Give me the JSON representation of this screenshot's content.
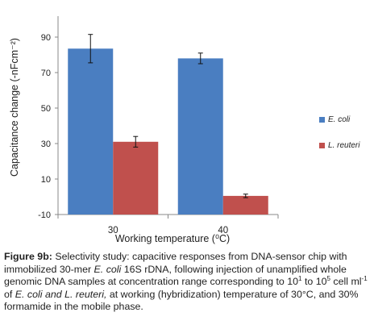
{
  "chart_data": {
    "type": "bar",
    "categories": [
      "30",
      "40"
    ],
    "series": [
      {
        "name": "E. coli",
        "values": [
          83.5,
          78.0
        ],
        "errors": [
          8,
          3
        ],
        "color": "#4a7ec1"
      },
      {
        "name": "L. reuteri",
        "values": [
          31.0,
          0.5
        ],
        "errors": [
          3,
          1
        ],
        "color": "#c0504d"
      }
    ],
    "ylabel": "Capacitance change (-nFcm⁻²)",
    "xlabel": "Working temperature  (⁰C)",
    "yticks": [
      -10,
      10,
      30,
      50,
      70,
      90
    ],
    "ytick_labels": [
      "-10",
      "10",
      "30",
      "50",
      "70",
      "90"
    ],
    "ylim": [
      -10,
      100
    ],
    "legend_position": "right",
    "grid": false
  },
  "caption": {
    "label": "Figure 9b:",
    "line1": " Selectivity study: capacitive responses from DNA-sensor chip with immobilized 30-mer ",
    "ecoli1": "E. coli",
    "line2": " 16S rDNA, following injection of unamplified whole genomic DNA samples at concentration range corresponding to 10",
    "exp1": "1",
    "line3": " to 10",
    "exp2": "5",
    "line4": " cell ml",
    "exp3": "-1",
    "line5": "  of ",
    "species": "E. coli and L. reuteri,",
    "line6": "  at working (hybridization) temperature of 30°C, and 30% formamide in the mobile phase."
  }
}
